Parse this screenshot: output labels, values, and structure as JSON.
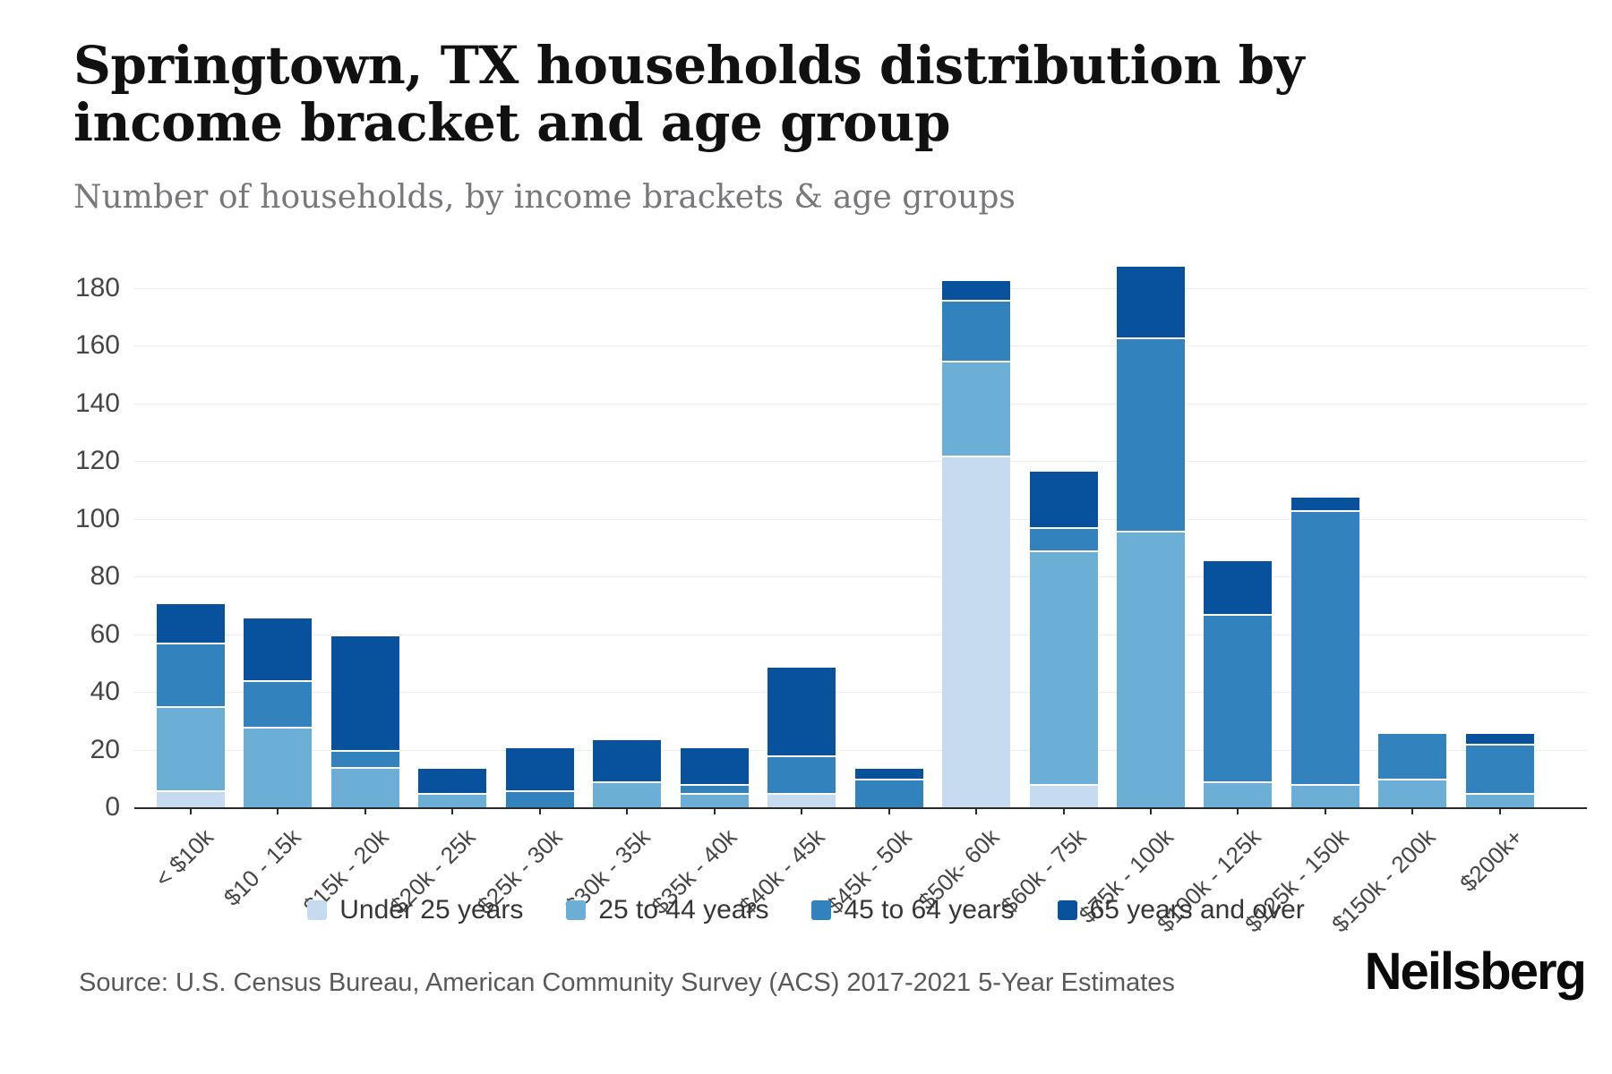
{
  "header": {
    "title": "Springtown, TX households distribution by income bracket and age group",
    "subtitle": "Number of households, by income brackets & age groups"
  },
  "footer": {
    "source": "Source: U.S. Census Bureau, American Community Survey (ACS) 2017-2021 5-Year Estimates",
    "brand": "Neilsberg"
  },
  "chart_data": {
    "type": "bar",
    "stacked": true,
    "title": "Springtown, TX households distribution by income bracket and age group",
    "subtitle": "Number of households, by income brackets & age groups",
    "xlabel": "",
    "ylabel": "Number of households",
    "ylim": [
      0,
      180
    ],
    "y_ticks": [
      0,
      20,
      40,
      60,
      80,
      100,
      120,
      140,
      160,
      180
    ],
    "grid": "horizontal",
    "legend_position": "bottom-center",
    "categories": [
      "< $10k",
      "$10 - 15k",
      "$15k - 20k",
      "$20k - 25k",
      "$25k - 30k",
      "$30k - 35k",
      "$35k - 40k",
      "$40k - 45k",
      "$45k - 50k",
      "$50k- 60k",
      "$60k - 75k",
      "$75k - 100k",
      "$100k - 125k",
      "$125k - 150k",
      "$150k - 200k",
      "$200k+"
    ],
    "series": [
      {
        "name": "Under 25 years",
        "color": "#c6dbef",
        "values": [
          6,
          0,
          0,
          0,
          0,
          0,
          0,
          5,
          0,
          122,
          8,
          0,
          0,
          0,
          0,
          0
        ]
      },
      {
        "name": "25 to 44 years",
        "color": "#6baed6",
        "values": [
          29,
          28,
          14,
          5,
          0,
          9,
          5,
          0,
          0,
          33,
          81,
          96,
          9,
          8,
          10,
          5
        ]
      },
      {
        "name": "45 to 64 years",
        "color": "#3182bd",
        "values": [
          22,
          16,
          6,
          0,
          6,
          0,
          3,
          13,
          10,
          21,
          8,
          67,
          58,
          95,
          16,
          17
        ]
      },
      {
        "name": "65 years and over",
        "color": "#08519c",
        "values": [
          14,
          22,
          40,
          9,
          15,
          15,
          13,
          31,
          4,
          7,
          20,
          25,
          19,
          5,
          0,
          4
        ]
      }
    ],
    "stack_totals": [
      71,
      66,
      60,
      14,
      21,
      24,
      21,
      49,
      14,
      183,
      117,
      188,
      86,
      108,
      26,
      26
    ]
  }
}
